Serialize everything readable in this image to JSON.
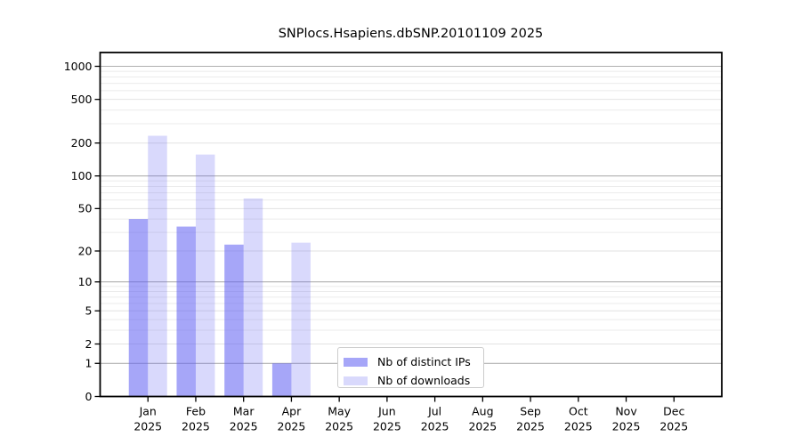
{
  "window": {
    "background": "#ffffff"
  },
  "chart_data": {
    "type": "bar",
    "title": "SNPlocs.Hsapiens.dbSNP.20101109 2025",
    "categories": [
      "Jan",
      "Feb",
      "Mar",
      "Apr",
      "May",
      "Jun",
      "Jul",
      "Aug",
      "Sep",
      "Oct",
      "Nov",
      "Dec"
    ],
    "x_sub_label": "2025",
    "series": [
      {
        "name": "Nb of distinct IPs",
        "values": [
          40,
          34,
          23,
          1,
          0,
          0,
          0,
          0,
          0,
          0,
          0,
          0
        ],
        "color": "#6060f2",
        "opacity": 0.56
      },
      {
        "name": "Nb of downloads",
        "values": [
          233,
          157,
          62,
          24,
          0,
          0,
          0,
          0,
          0,
          0,
          0,
          0
        ],
        "color": "#6060f2",
        "opacity": 0.24
      }
    ],
    "yscale": "log1p",
    "ylim": [
      0,
      1335
    ],
    "y_ticks": [
      0,
      1,
      2,
      5,
      10,
      20,
      50,
      100,
      200,
      500,
      1000
    ],
    "y_minor_ticks": [
      3,
      4,
      6,
      7,
      8,
      9,
      30,
      40,
      60,
      70,
      80,
      90,
      300,
      400,
      600,
      700,
      800,
      900
    ],
    "grid": true,
    "legend_position": "lower center",
    "colors": {
      "axis": "#000000",
      "tick_text": "#000000",
      "grid_major": "#b0b0b0",
      "grid_labeled": "#e2e2e2",
      "grid_minor": "#ebebeb",
      "legend_border": "#cccccc",
      "legend_bg": "#ffffff"
    }
  }
}
